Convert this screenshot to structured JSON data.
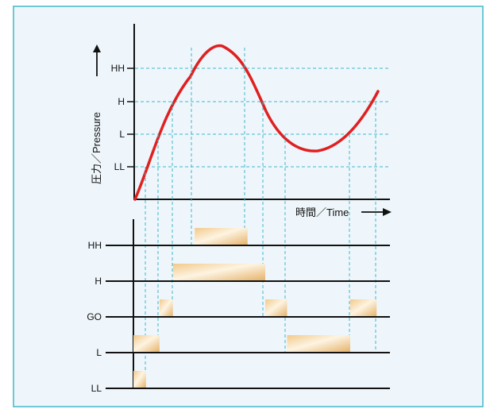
{
  "colors": {
    "background": "#eef6fb",
    "border": "#3fb8c8",
    "curve": "#e02020",
    "guide": "#3fb8c8",
    "bar_light": "#fdf2dc",
    "bar_dark": "#e8b870",
    "axis": "#111111"
  },
  "pressure_chart": {
    "y_axis_label": "圧力／Pressure",
    "x_axis_label": "時間／Time",
    "threshold_levels": [
      "HH",
      "H",
      "L",
      "LL"
    ]
  },
  "output_chart": {
    "channels": [
      {
        "name": "HH",
        "on_intervals": [
          [
            0.239,
            0.445
          ]
        ]
      },
      {
        "name": "H",
        "on_intervals": [
          [
            0.154,
            0.514
          ]
        ]
      },
      {
        "name": "GO",
        "on_intervals": [
          [
            0.102,
            0.154
          ],
          [
            0.514,
            0.599
          ],
          [
            0.845,
            0.948
          ]
        ]
      },
      {
        "name": "L",
        "on_intervals": [
          [
            0.0,
            0.102
          ],
          [
            0.599,
            0.845
          ]
        ]
      },
      {
        "name": "LL",
        "on_intervals": [
          [
            0.0,
            0.049
          ]
        ]
      }
    ]
  },
  "legend": {
    "output_on": "",
    "threshold_guide": ""
  }
}
